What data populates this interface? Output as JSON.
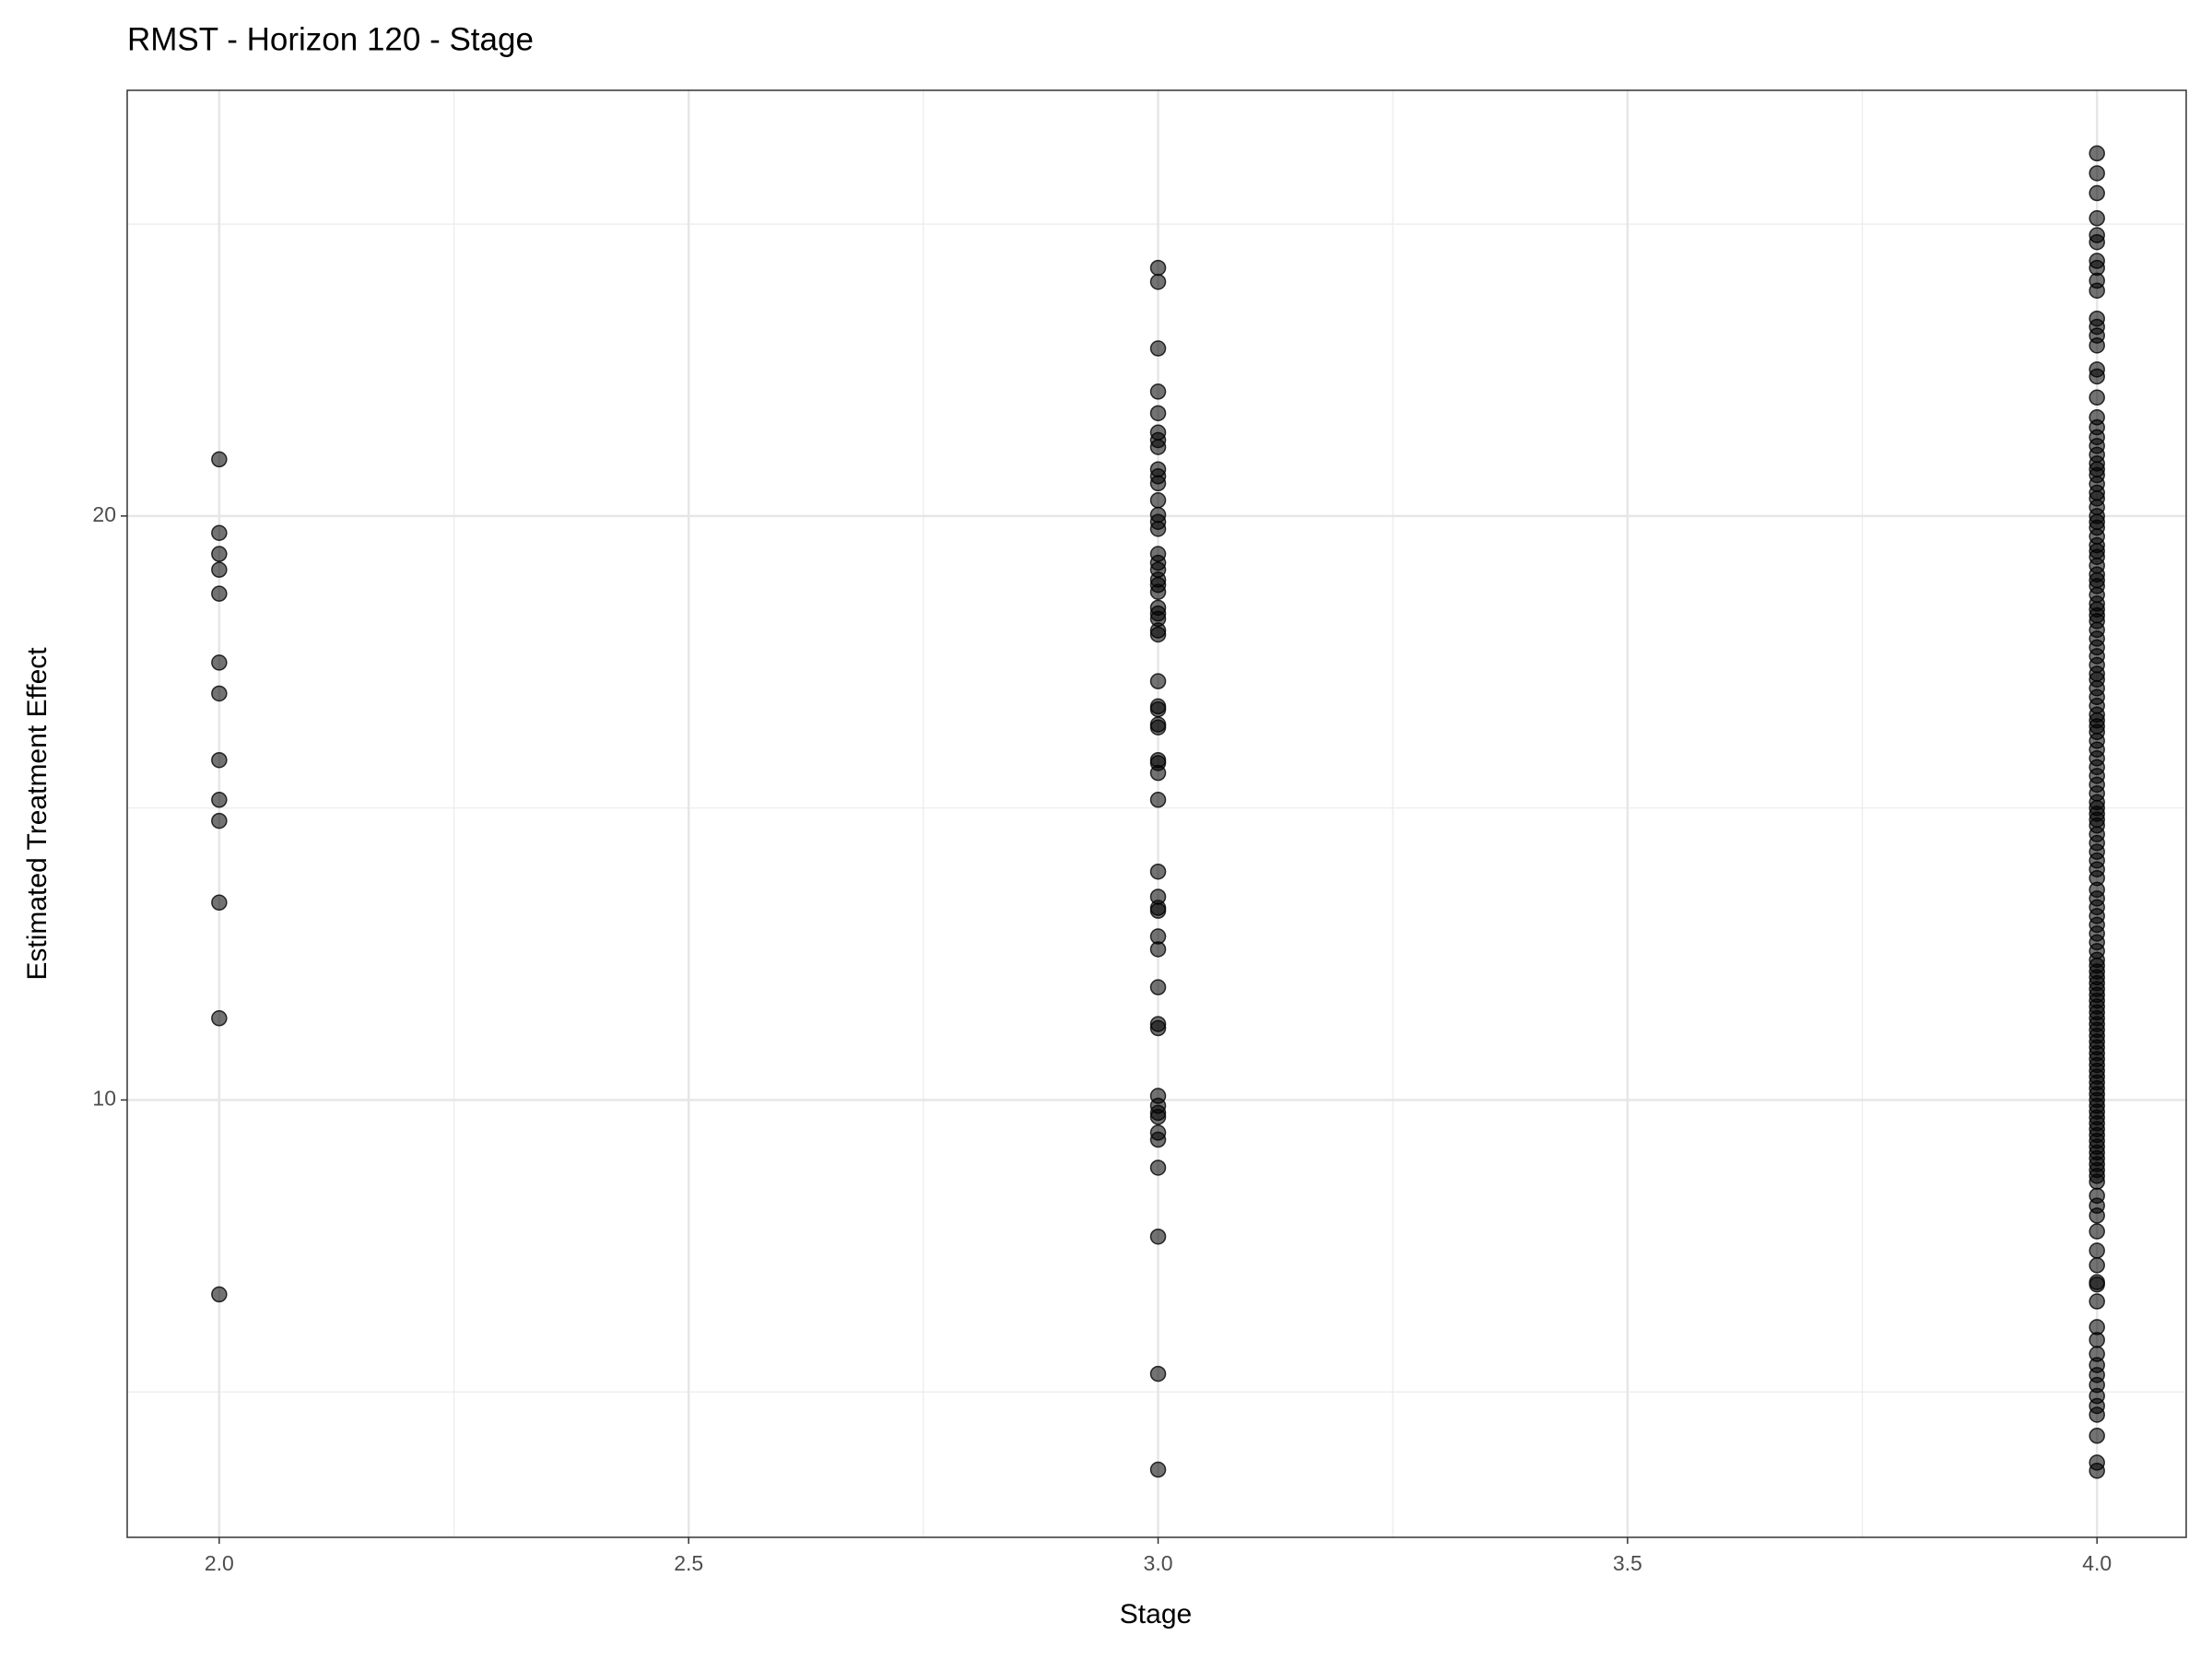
{
  "chart_data": {
    "type": "scatter",
    "title": "RMST - Horizon 120 - Stage",
    "x_label": "Stage",
    "y_label": "Estimated Treatment Effect",
    "xlim": [
      1.902,
      4.095
    ],
    "ylim": [
      2.51,
      27.29
    ],
    "xticks": [
      {
        "value": 2,
        "label": "2.0"
      },
      2.5,
      {
        "value": 3,
        "label": "3.0"
      },
      3.5,
      {
        "value": 4,
        "label": "4.0"
      }
    ],
    "yticks": [
      10,
      20
    ],
    "x_minor_grid": [
      2.25,
      2.75,
      3.25,
      3.75
    ],
    "y_minor_grid": [
      5,
      15,
      25
    ],
    "grid": true,
    "color": "#000000",
    "alpha": 0.55,
    "series": [
      {
        "x": 2,
        "values": [
          20.97,
          19.71,
          19.35,
          19.08,
          18.67,
          17.49,
          16.96,
          15.82,
          15.14,
          14.78,
          13.38,
          11.4,
          6.67
        ]
      },
      {
        "x": 3,
        "values": [
          24.25,
          24.01,
          22.87,
          22.13,
          21.76,
          21.43,
          21.3,
          21.18,
          20.8,
          20.68,
          20.56,
          20.27,
          20.02,
          19.9,
          19.78,
          19.35,
          19.2,
          19.08,
          18.91,
          18.82,
          18.7,
          18.43,
          18.33,
          18.24,
          18.04,
          17.97,
          17.17,
          16.74,
          16.69,
          16.43,
          16.38,
          15.82,
          15.77,
          15.6,
          15.14,
          13.91,
          13.48,
          13.29,
          13.24,
          12.8,
          12.58,
          11.93,
          11.3,
          11.23,
          10.07,
          9.9,
          9.78,
          9.71,
          9.44,
          9.32,
          8.84,
          7.66,
          5.31,
          3.67
        ]
      },
      {
        "x": 4,
        "values": [
          26.21,
          25.87,
          25.53,
          25.1,
          24.81,
          24.69,
          24.37,
          24.25,
          24.03,
          23.86,
          23.38,
          23.24,
          23.09,
          22.92,
          22.51,
          22.39,
          22.03,
          21.69,
          21.52,
          21.35,
          21.2,
          21.05,
          20.9,
          20.8,
          20.7,
          20.55,
          20.4,
          20.3,
          20.15,
          20.0,
          19.9,
          19.8,
          19.65,
          19.5,
          19.4,
          19.3,
          19.15,
          19.0,
          18.9,
          18.8,
          18.65,
          18.5,
          18.4,
          18.3,
          18.2,
          18.05,
          17.9,
          17.75,
          17.6,
          17.45,
          17.3,
          17.2,
          17.05,
          16.9,
          16.75,
          16.6,
          16.5,
          16.4,
          16.3,
          16.15,
          16.0,
          15.85,
          15.7,
          15.55,
          15.4,
          15.25,
          15.1,
          15.0,
          14.9,
          14.8,
          14.7,
          14.55,
          14.4,
          14.25,
          14.1,
          13.95,
          13.8,
          13.6,
          13.45,
          13.3,
          13.15,
          13.0,
          12.85,
          12.7,
          12.55,
          12.4,
          12.3,
          12.2,
          12.1,
          12.0,
          11.9,
          11.8,
          11.7,
          11.6,
          11.5,
          11.4,
          11.3,
          11.2,
          11.1,
          11.0,
          10.9,
          10.8,
          10.7,
          10.6,
          10.5,
          10.4,
          10.3,
          10.2,
          10.1,
          10.0,
          9.9,
          9.8,
          9.7,
          9.6,
          9.5,
          9.4,
          9.3,
          9.2,
          9.1,
          9.0,
          8.9,
          8.8,
          8.7,
          8.6,
          8.36,
          8.19,
          8.02,
          7.75,
          7.42,
          7.17,
          6.88,
          6.84,
          6.55,
          6.11,
          5.89,
          5.65,
          5.46,
          5.29,
          5.12,
          4.93,
          4.76,
          4.61,
          4.25,
          3.79,
          3.65
        ]
      }
    ]
  }
}
